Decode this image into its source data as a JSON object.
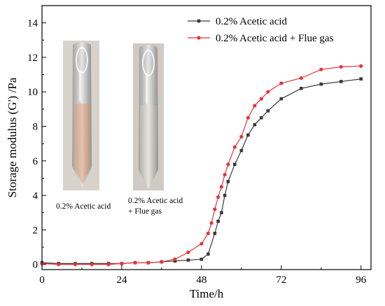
{
  "chart_data": {
    "type": "line",
    "title": "",
    "xlabel": "Time/h",
    "ylabel": "Storage modulus (G') /Pa",
    "xlim": [
      0,
      99
    ],
    "ylim": [
      -0.3,
      15
    ],
    "xticks": [
      0,
      24,
      48,
      72,
      96
    ],
    "yticks": [
      0,
      2,
      4,
      6,
      8,
      10,
      12,
      14
    ],
    "grid": false,
    "legend_position": "top-right",
    "series": [
      {
        "name": "0.2% Acetic acid",
        "color": "#3a3a3a",
        "marker": "square",
        "x": [
          0,
          5,
          10,
          15,
          20,
          24,
          28,
          32,
          36,
          40,
          44,
          48,
          50,
          52,
          53,
          54,
          55,
          56,
          58,
          60,
          62,
          64,
          66,
          68,
          72,
          78,
          84,
          90,
          96
        ],
        "y": [
          0.1,
          0.05,
          0.05,
          0.05,
          0.05,
          0.05,
          0.1,
          0.1,
          0.15,
          0.2,
          0.25,
          0.3,
          0.6,
          1.8,
          2.5,
          3.0,
          4.0,
          4.8,
          5.8,
          6.6,
          7.5,
          8.1,
          8.5,
          8.9,
          9.6,
          10.2,
          10.45,
          10.6,
          10.75
        ]
      },
      {
        "name": "0.2% Acetic acid + Flue gas",
        "color": "#e8343a",
        "marker": "circle",
        "x": [
          0,
          5,
          10,
          15,
          20,
          24,
          28,
          32,
          36,
          40,
          44,
          48,
          50,
          51,
          52,
          53,
          54,
          55,
          56,
          58,
          60,
          62,
          64,
          66,
          68,
          72,
          78,
          84,
          90,
          96
        ],
        "y": [
          0.05,
          0.0,
          0.0,
          0.0,
          0.0,
          0.05,
          0.1,
          0.1,
          0.15,
          0.3,
          0.7,
          1.2,
          1.8,
          2.4,
          3.2,
          3.9,
          4.5,
          5.2,
          5.8,
          6.8,
          7.4,
          8.5,
          9.2,
          9.6,
          10.0,
          10.5,
          10.8,
          11.3,
          11.45,
          11.5
        ]
      }
    ],
    "annotations": {
      "photo_left_caption": "0.2% Acetic acid",
      "photo_right_caption_line1": "0.2% Acetic acid",
      "photo_right_caption_line2": "+ Flue gas"
    }
  }
}
